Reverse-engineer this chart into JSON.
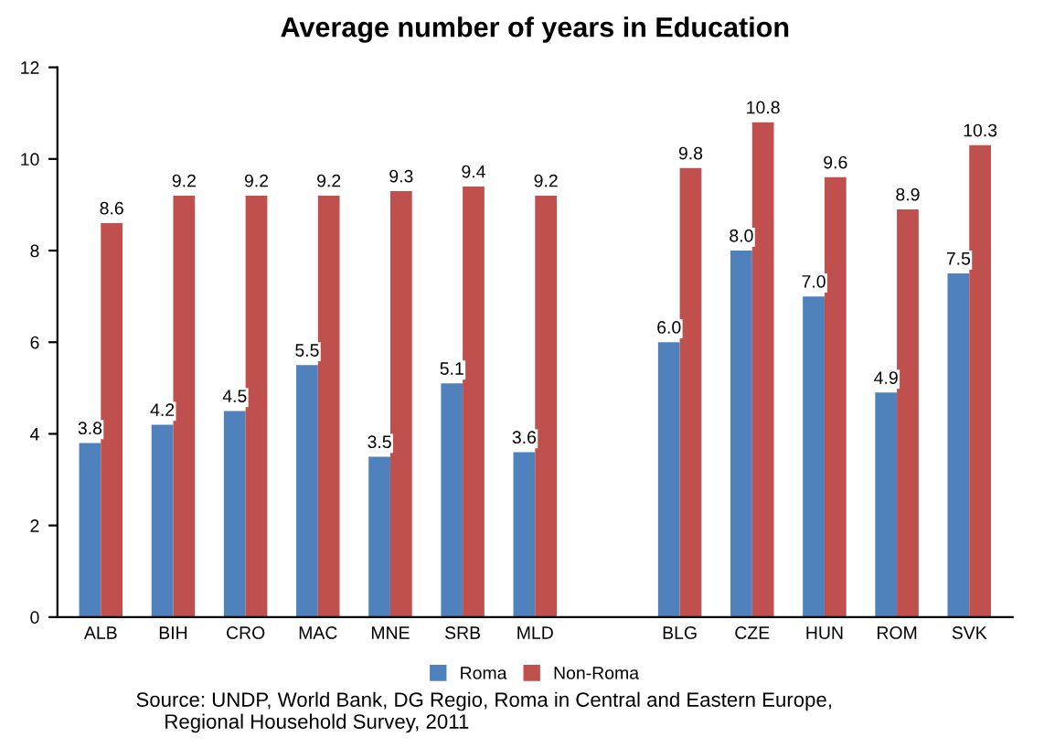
{
  "chart_data": {
    "type": "bar",
    "title": "Average number of years in Education",
    "categories": [
      "ALB",
      "BIH",
      "CRO",
      "MAC",
      "MNE",
      "SRB",
      "MLD",
      null,
      "BLG",
      "CZE",
      "HUN",
      "ROM",
      "SVK"
    ],
    "series": [
      {
        "name": "Roma",
        "color": "#4f81bd",
        "values": [
          3.8,
          4.2,
          4.5,
          5.5,
          3.5,
          5.1,
          3.6,
          null,
          6.0,
          8.0,
          7.0,
          4.9,
          7.5
        ],
        "value_labels": [
          "3.8",
          "4.2",
          "4.5",
          "5.5",
          "3.5",
          "5.1",
          "3.6",
          null,
          "6.0",
          "8.0",
          "7.0",
          "4.9",
          "7.5"
        ]
      },
      {
        "name": "Non-Roma",
        "color": "#c0504d",
        "values": [
          8.6,
          9.2,
          9.2,
          9.2,
          9.3,
          9.4,
          9.2,
          null,
          9.8,
          10.8,
          9.6,
          8.9,
          10.3
        ],
        "value_labels": [
          "8.6",
          "9.2",
          "9.2",
          "9.2",
          "9.3",
          "9.4",
          "9.2",
          null,
          "9.8",
          "10.8",
          "9.6",
          "8.9",
          "10.3"
        ]
      }
    ],
    "ylim": [
      0,
      12
    ],
    "yticks": [
      0,
      2,
      4,
      6,
      8,
      10,
      12
    ],
    "grid": false,
    "legend": "bottom",
    "annotations": [
      "Source: UNDP, World Bank, DG Regio, Roma in Central and Eastern Europe,\n     Regional Household Survey, 2011"
    ]
  }
}
